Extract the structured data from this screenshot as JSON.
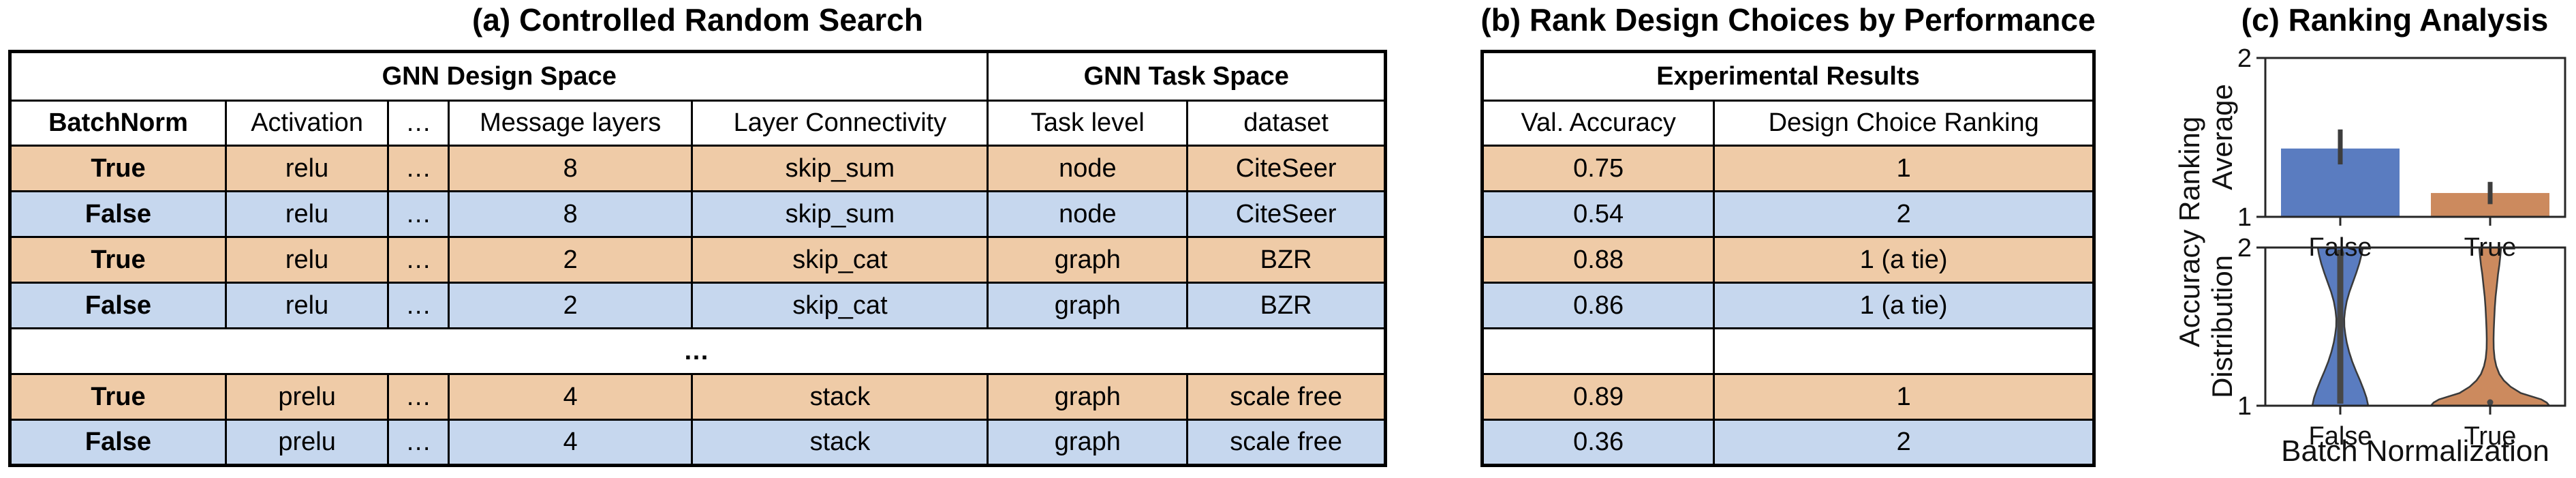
{
  "colors": {
    "row_orange": "#efcba7",
    "row_blue": "#c6d7ee",
    "series_blue": "#5a7cc0",
    "series_orange": "#cc8a5e",
    "inner_gray": "#474747",
    "axis_gray": "#262626",
    "table_border": "#000000"
  },
  "panel_a": {
    "title": "(a) Controlled Random Search",
    "table": {
      "group_headers": [
        {
          "label": "GNN Design Space",
          "colspan": 5
        },
        {
          "label": "GNN Task Space",
          "colspan": 2
        }
      ],
      "columns": [
        "BatchNorm",
        "Activation",
        "…",
        "Message layers",
        "Layer Connectivity",
        "Task level",
        "dataset"
      ],
      "bold_columns": [
        0
      ],
      "bold_first_col": true,
      "rows": [
        {
          "tone": "orange",
          "cells": [
            "True",
            "relu",
            "…",
            "8",
            "skip_sum",
            "node",
            "CiteSeer"
          ]
        },
        {
          "tone": "blue",
          "cells": [
            "False",
            "relu",
            "…",
            "8",
            "skip_sum",
            "node",
            "CiteSeer"
          ]
        },
        {
          "tone": "orange",
          "cells": [
            "True",
            "relu",
            "…",
            "2",
            "skip_cat",
            "graph",
            "BZR"
          ]
        },
        {
          "tone": "blue",
          "cells": [
            "False",
            "relu",
            "…",
            "2",
            "skip_cat",
            "graph",
            "BZR"
          ]
        },
        {
          "tone": "white",
          "type": "ellipsis",
          "label": "…"
        },
        {
          "tone": "orange",
          "cells": [
            "True",
            "prelu",
            "…",
            "4",
            "stack",
            "graph",
            "scale free"
          ]
        },
        {
          "tone": "blue",
          "cells": [
            "False",
            "prelu",
            "…",
            "4",
            "stack",
            "graph",
            "scale free"
          ]
        }
      ]
    }
  },
  "panel_b": {
    "title": "(b) Rank Design Choices by Performance",
    "table": {
      "group_headers": [
        {
          "label": "Experimental Results",
          "colspan": 2
        }
      ],
      "columns": [
        "Val. Accuracy",
        "Design Choice Ranking"
      ],
      "bold_columns": [],
      "bold_first_col": false,
      "rows": [
        {
          "tone": "orange",
          "cells": [
            "0.75",
            "1"
          ]
        },
        {
          "tone": "blue",
          "cells": [
            "0.54",
            "2"
          ]
        },
        {
          "tone": "orange",
          "cells": [
            "0.88",
            "1 (a tie)"
          ]
        },
        {
          "tone": "blue",
          "cells": [
            "0.86",
            "1 (a tie)"
          ]
        },
        {
          "tone": "white",
          "cells": [
            "",
            ""
          ]
        },
        {
          "tone": "orange",
          "cells": [
            "0.89",
            "1"
          ]
        },
        {
          "tone": "blue",
          "cells": [
            "0.36",
            "2"
          ]
        }
      ]
    }
  },
  "panel_c": {
    "title": "(c) Ranking Analysis",
    "shared_ylabel": "Accuracy Ranking",
    "xlabel": "Batch Normalization"
  },
  "chart_data": [
    {
      "type": "bar",
      "subplot": "top",
      "ylabel": "Average",
      "categories": [
        "False",
        "True"
      ],
      "values": [
        1.43,
        1.15
      ],
      "error_bars": {
        "low": [
          1.33,
          1.08
        ],
        "high": [
          1.55,
          1.22
        ]
      },
      "ylim": [
        1,
        2
      ],
      "yticks": [
        1,
        2
      ],
      "grid": false,
      "colors": [
        "#5a7cc0",
        "#cc8a5e"
      ]
    },
    {
      "type": "violin",
      "subplot": "bottom",
      "ylabel": "Distribution",
      "xlabel": "Batch Normalization",
      "categories": [
        "False",
        "True"
      ],
      "ylim": [
        1,
        2
      ],
      "yticks": [
        1,
        2
      ],
      "grid": false,
      "colors": [
        "#5a7cc0",
        "#cc8a5e"
      ],
      "series": [
        {
          "name": "False",
          "median": 2,
          "range": [
            1,
            2
          ],
          "inner_bar": [
            1,
            2
          ],
          "width_profile": [
            [
              2.0,
              33
            ],
            [
              1.96,
              31.5
            ],
            [
              1.9,
              28
            ],
            [
              1.84,
              23.5
            ],
            [
              1.78,
              18.5
            ],
            [
              1.72,
              13.5
            ],
            [
              1.66,
              9.5
            ],
            [
              1.6,
              7
            ],
            [
              1.55,
              5.8
            ],
            [
              1.5,
              6
            ],
            [
              1.45,
              7.5
            ],
            [
              1.4,
              9.5
            ],
            [
              1.34,
              13
            ],
            [
              1.28,
              17.5
            ],
            [
              1.22,
              23
            ],
            [
              1.16,
              29
            ],
            [
              1.1,
              34.5
            ],
            [
              1.05,
              38.5
            ],
            [
              1.0,
              41
            ]
          ]
        },
        {
          "name": "True",
          "median": 1,
          "range": [
            1,
            2
          ],
          "inner_bar": null,
          "width_profile": [
            [
              2.0,
              16
            ],
            [
              1.95,
              15
            ],
            [
              1.89,
              13.5
            ],
            [
              1.83,
              11.5
            ],
            [
              1.76,
              9.8
            ],
            [
              1.69,
              8
            ],
            [
              1.62,
              6.8
            ],
            [
              1.55,
              6
            ],
            [
              1.48,
              5.3
            ],
            [
              1.42,
              5
            ],
            [
              1.36,
              5.2
            ],
            [
              1.3,
              6.5
            ],
            [
              1.25,
              9
            ],
            [
              1.2,
              13.5
            ],
            [
              1.16,
              20
            ],
            [
              1.12,
              30
            ],
            [
              1.08,
              45
            ],
            [
              1.04,
              75
            ],
            [
              1.02,
              83
            ],
            [
              1.0,
              87
            ]
          ]
        }
      ]
    }
  ]
}
